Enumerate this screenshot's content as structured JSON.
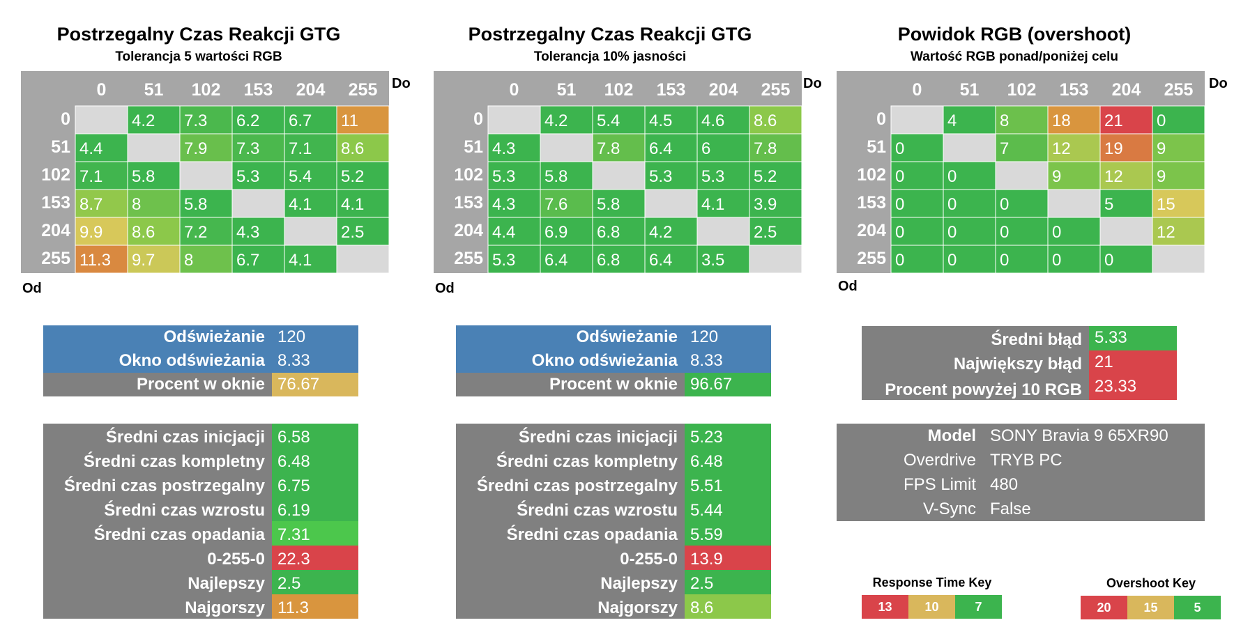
{
  "chart_data": [
    {
      "type": "heatmap",
      "title": "Postrzegalny Czas Reakcji GTG",
      "subtitle": "Tolerancja 5 wartości RGB",
      "xlabel": "Do",
      "ylabel": "Od",
      "x": [
        "0",
        "51",
        "102",
        "153",
        "204",
        "255"
      ],
      "y": [
        "0",
        "51",
        "102",
        "153",
        "204",
        "255"
      ],
      "values": [
        [
          null,
          "4.2",
          "7.3",
          "6.2",
          "6.7",
          "11"
        ],
        [
          "4.4",
          null,
          "7.9",
          "7.3",
          "7.1",
          "8.6"
        ],
        [
          "7.1",
          "5.8",
          null,
          "5.3",
          "5.4",
          "5.2"
        ],
        [
          "8.7",
          "8",
          "5.8",
          null,
          "4.1",
          "4.1"
        ],
        [
          "9.9",
          "8.6",
          "7.2",
          "4.3",
          null,
          "2.5"
        ],
        [
          "11.3",
          "9.7",
          "8",
          "6.7",
          "4.1",
          null
        ]
      ],
      "color_scale": "response"
    },
    {
      "type": "heatmap",
      "title": "Postrzegalny Czas Reakcji GTG",
      "subtitle": "Tolerancja 10% jasności",
      "xlabel": "Do",
      "ylabel": "Od",
      "x": [
        "0",
        "51",
        "102",
        "153",
        "204",
        "255"
      ],
      "y": [
        "0",
        "51",
        "102",
        "153",
        "204",
        "255"
      ],
      "values": [
        [
          null,
          "4.2",
          "5.4",
          "4.5",
          "4.6",
          "8.6"
        ],
        [
          "4.3",
          null,
          "7.8",
          "6.4",
          "6",
          "7.8"
        ],
        [
          "5.3",
          "5.8",
          null,
          "5.3",
          "5.3",
          "5.2"
        ],
        [
          "4.3",
          "7.6",
          "5.8",
          null,
          "4.1",
          "3.9"
        ],
        [
          "4.4",
          "6.9",
          "6.8",
          "4.2",
          null,
          "2.5"
        ],
        [
          "5.3",
          "6.4",
          "6.8",
          "6.4",
          "3.5",
          null
        ]
      ],
      "color_scale": "response"
    },
    {
      "type": "heatmap",
      "title": "Powidok RGB (overshoot)",
      "subtitle": "Wartość RGB ponad/poniżej celu",
      "xlabel": "Do",
      "ylabel": "Od",
      "x": [
        "0",
        "51",
        "102",
        "153",
        "204",
        "255"
      ],
      "y": [
        "0",
        "51",
        "102",
        "153",
        "204",
        "255"
      ],
      "values": [
        [
          null,
          "4",
          "8",
          "18",
          "21",
          "0"
        ],
        [
          "0",
          null,
          "7",
          "12",
          "19",
          "9"
        ],
        [
          "0",
          "0",
          null,
          "9",
          "12",
          "9"
        ],
        [
          "0",
          "0",
          "0",
          null,
          "5",
          "15"
        ],
        [
          "0",
          "0",
          "0",
          "0",
          null,
          "12"
        ],
        [
          "0",
          "0",
          "0",
          "0",
          "0",
          null
        ]
      ],
      "color_scale": "overshoot"
    }
  ],
  "refresh_panels": [
    {
      "rows": [
        {
          "label": "Odświeżanie",
          "value": "120",
          "style": "blue"
        },
        {
          "label": "Okno odświeżania",
          "value": "8.33",
          "style": "blue"
        },
        {
          "label": "Procent w oknie",
          "value": "76.67",
          "style": "gray",
          "color": "#d9b75c"
        }
      ]
    },
    {
      "rows": [
        {
          "label": "Odświeżanie",
          "value": "120",
          "style": "blue"
        },
        {
          "label": "Okno odświeżania",
          "value": "8.33",
          "style": "blue"
        },
        {
          "label": "Procent w oknie",
          "value": "96.67",
          "style": "gray",
          "color": "#3cb44e"
        }
      ]
    }
  ],
  "stats_panels": [
    {
      "rows": [
        {
          "label": "Średni czas inicjacji",
          "value": "6.58",
          "color": "#3cb44e"
        },
        {
          "label": "Średni czas kompletny",
          "value": "6.48",
          "color": "#3cb44e"
        },
        {
          "label": "Średni czas postrzegalny",
          "value": "6.75",
          "color": "#3cb44e"
        },
        {
          "label": "Średni czas wzrostu",
          "value": "6.19",
          "color": "#3cb44e"
        },
        {
          "label": "Średni czas opadania",
          "value": "7.31",
          "color": "#4cc74c"
        },
        {
          "label": "0-255-0",
          "value": "22.3",
          "color": "#d9444a"
        },
        {
          "label": "Najlepszy",
          "value": "2.5",
          "color": "#3cb44e"
        },
        {
          "label": "Najgorszy",
          "value": "11.3",
          "color": "#d9953e"
        }
      ]
    },
    {
      "rows": [
        {
          "label": "Średni czas inicjacji",
          "value": "5.23",
          "color": "#3cb44e"
        },
        {
          "label": "Średni czas kompletny",
          "value": "6.48",
          "color": "#3cb44e"
        },
        {
          "label": "Średni czas postrzegalny",
          "value": "5.51",
          "color": "#3cb44e"
        },
        {
          "label": "Średni czas wzrostu",
          "value": "5.44",
          "color": "#3cb44e"
        },
        {
          "label": "Średni czas opadania",
          "value": "5.59",
          "color": "#3cb44e"
        },
        {
          "label": "0-255-0",
          "value": "13.9",
          "color": "#d9444a"
        },
        {
          "label": "Najlepszy",
          "value": "2.5",
          "color": "#3cb44e"
        },
        {
          "label": "Najgorszy",
          "value": "8.6",
          "color": "#8cc84a"
        }
      ]
    }
  ],
  "overshoot_panel": {
    "rows": [
      {
        "label": "Średni błąd",
        "value": "5.33",
        "color": "#3cb44e"
      },
      {
        "label": "Największy błąd",
        "value": "21",
        "color": "#d9444a"
      },
      {
        "label": "Procent powyżej 10 RGB",
        "value": "23.33",
        "color": "#d9444a"
      }
    ]
  },
  "info_panel": {
    "rows": [
      {
        "label": "Model",
        "value": "SONY  Bravia 9 65XR90",
        "bold": true
      },
      {
        "label": "Overdrive",
        "value": "TRYB PC",
        "bold": false
      },
      {
        "label": "FPS Limit",
        "value": "480",
        "bold": false
      },
      {
        "label": "V-Sync",
        "value": "False",
        "bold": false
      }
    ]
  },
  "keys": [
    {
      "title": "Response Time Key",
      "cells": [
        {
          "value": "13",
          "color": "#d9444a"
        },
        {
          "value": "10",
          "color": "#d9b75c"
        },
        {
          "value": "7",
          "color": "#3cb44e"
        }
      ]
    },
    {
      "title": "Overshoot Key",
      "cells": [
        {
          "value": "20",
          "color": "#d9444a"
        },
        {
          "value": "15",
          "color": "#d9b75c"
        },
        {
          "value": "5",
          "color": "#3cb44e"
        }
      ]
    }
  ],
  "colors": {
    "header_gray": "#a6a6a6",
    "diag_gray": "#d9d9d9",
    "panel_gray": "#808080",
    "panel_blue": "#4a81b5",
    "red": "#d9444a",
    "yellow": "#d9b75c",
    "green": "#3cb44e"
  }
}
